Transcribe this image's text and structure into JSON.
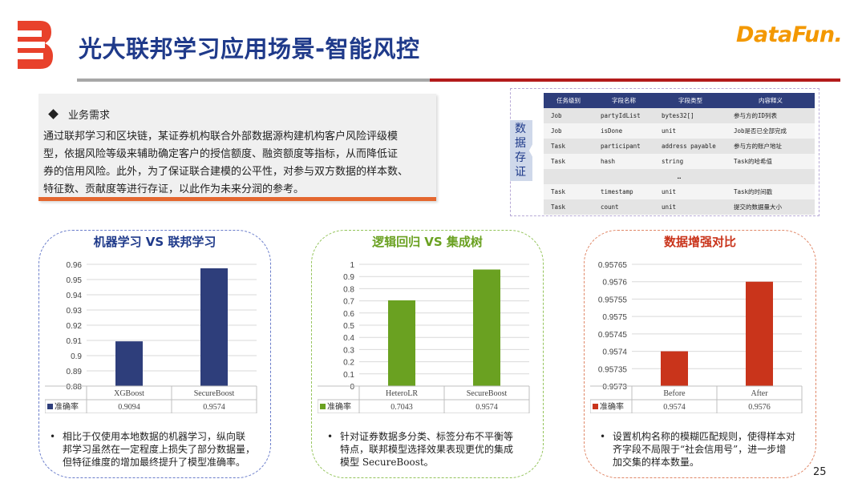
{
  "header": {
    "title": "光大联邦学习应用场景-智能风控",
    "brand": "DataFun."
  },
  "requirements": {
    "heading": "业务需求",
    "lines": [
      "通过联邦学习和区块链，某证券机构联合外部数据源构建机构客户风险评级模",
      "型，依据风险等级来辅助确定客户的授信额度、融资额度等指标，从而降低证",
      "券的信用风险。此外，为了保证联合建模的公平性，对参与双方数据的样本数、",
      "特征数、贡献度等进行存证，以此作为未来分润的参考。"
    ]
  },
  "storage": {
    "label": [
      "数",
      "据",
      "存",
      "证"
    ],
    "headers": [
      "任务级别",
      "字段名称",
      "字段类型",
      "内容释义"
    ],
    "rows": [
      [
        "Job",
        "partyIdList",
        "bytes32[]",
        "参与方的ID列表"
      ],
      [
        "Job",
        "isDone",
        "unit",
        "Job是否已全部完成"
      ],
      [
        "Task",
        "participant",
        "address payable",
        "参与方的账户地址"
      ],
      [
        "Task",
        "hash",
        "string",
        "Task的哈希值"
      ],
      [
        "…",
        "",
        "",
        ""
      ],
      [
        "Task",
        "timestamp",
        "unit",
        "Task的时间戳"
      ],
      [
        "Task",
        "count",
        "unit",
        "提交的数据量大小"
      ]
    ]
  },
  "chart_data": [
    {
      "type": "bar",
      "title": "机器学习 VS 联邦学习",
      "categories": [
        "XGBoost",
        "SecureBoost"
      ],
      "series": [
        {
          "name": "准确率",
          "values": [
            0.9094,
            0.9574
          ]
        }
      ],
      "table_values": [
        "0.9094",
        "0.9574"
      ],
      "ylim": [
        0.88,
        0.96
      ],
      "yticks": [
        "0.96",
        "0.95",
        "0.94",
        "0.93",
        "0.92",
        "0.91",
        "0.9",
        "0.89",
        "0.88"
      ],
      "color": "#2e3e7b",
      "legend": "data-table"
    },
    {
      "type": "bar",
      "title": "逻辑回归 VS 集成树",
      "categories": [
        "HeteroLR",
        "SecureBoost"
      ],
      "series": [
        {
          "name": "准确率",
          "values": [
            0.7043,
            0.9574
          ]
        }
      ],
      "table_values": [
        "0.7043",
        "0.9574"
      ],
      "ylim": [
        0,
        1
      ],
      "yticks": [
        "1",
        "0.9",
        "0.8",
        "0.7",
        "0.6",
        "0.5",
        "0.4",
        "0.3",
        "0.2",
        "0.1",
        "0"
      ],
      "color": "#6aa121",
      "legend": "data-table"
    },
    {
      "type": "bar",
      "title": "数据增强对比",
      "categories": [
        "Before",
        "After"
      ],
      "series": [
        {
          "name": "准确率",
          "values": [
            0.9574,
            0.9576
          ]
        }
      ],
      "table_values": [
        "0.9574",
        "0.9576"
      ],
      "ylim": [
        0.9573,
        0.95765
      ],
      "yticks": [
        "0.95765",
        "0.9576",
        "0.95755",
        "0.9575",
        "0.95745",
        "0.9574",
        "0.95735",
        "0.9573"
      ],
      "color": "#c9341b",
      "legend": "data-table"
    }
  ],
  "notes": [
    [
      "相比于仅使用本地数据的机器学习，纵向联",
      "邦学习虽然在一定程度上损失了部分数据量，",
      "但特征维度的增加最终提升了模型准确率。"
    ],
    [
      "针对证券数据多分类、标签分布不平衡等",
      "特点，联邦模型选择效果表现更优的集成",
      "模型 SecureBoost。"
    ],
    [
      "设置机构名称的模糊匹配规则，使得样本对",
      "齐字段不局限于“社会信用号”，进一步增",
      "加交集的样本数量。"
    ]
  ],
  "page_number": "25"
}
